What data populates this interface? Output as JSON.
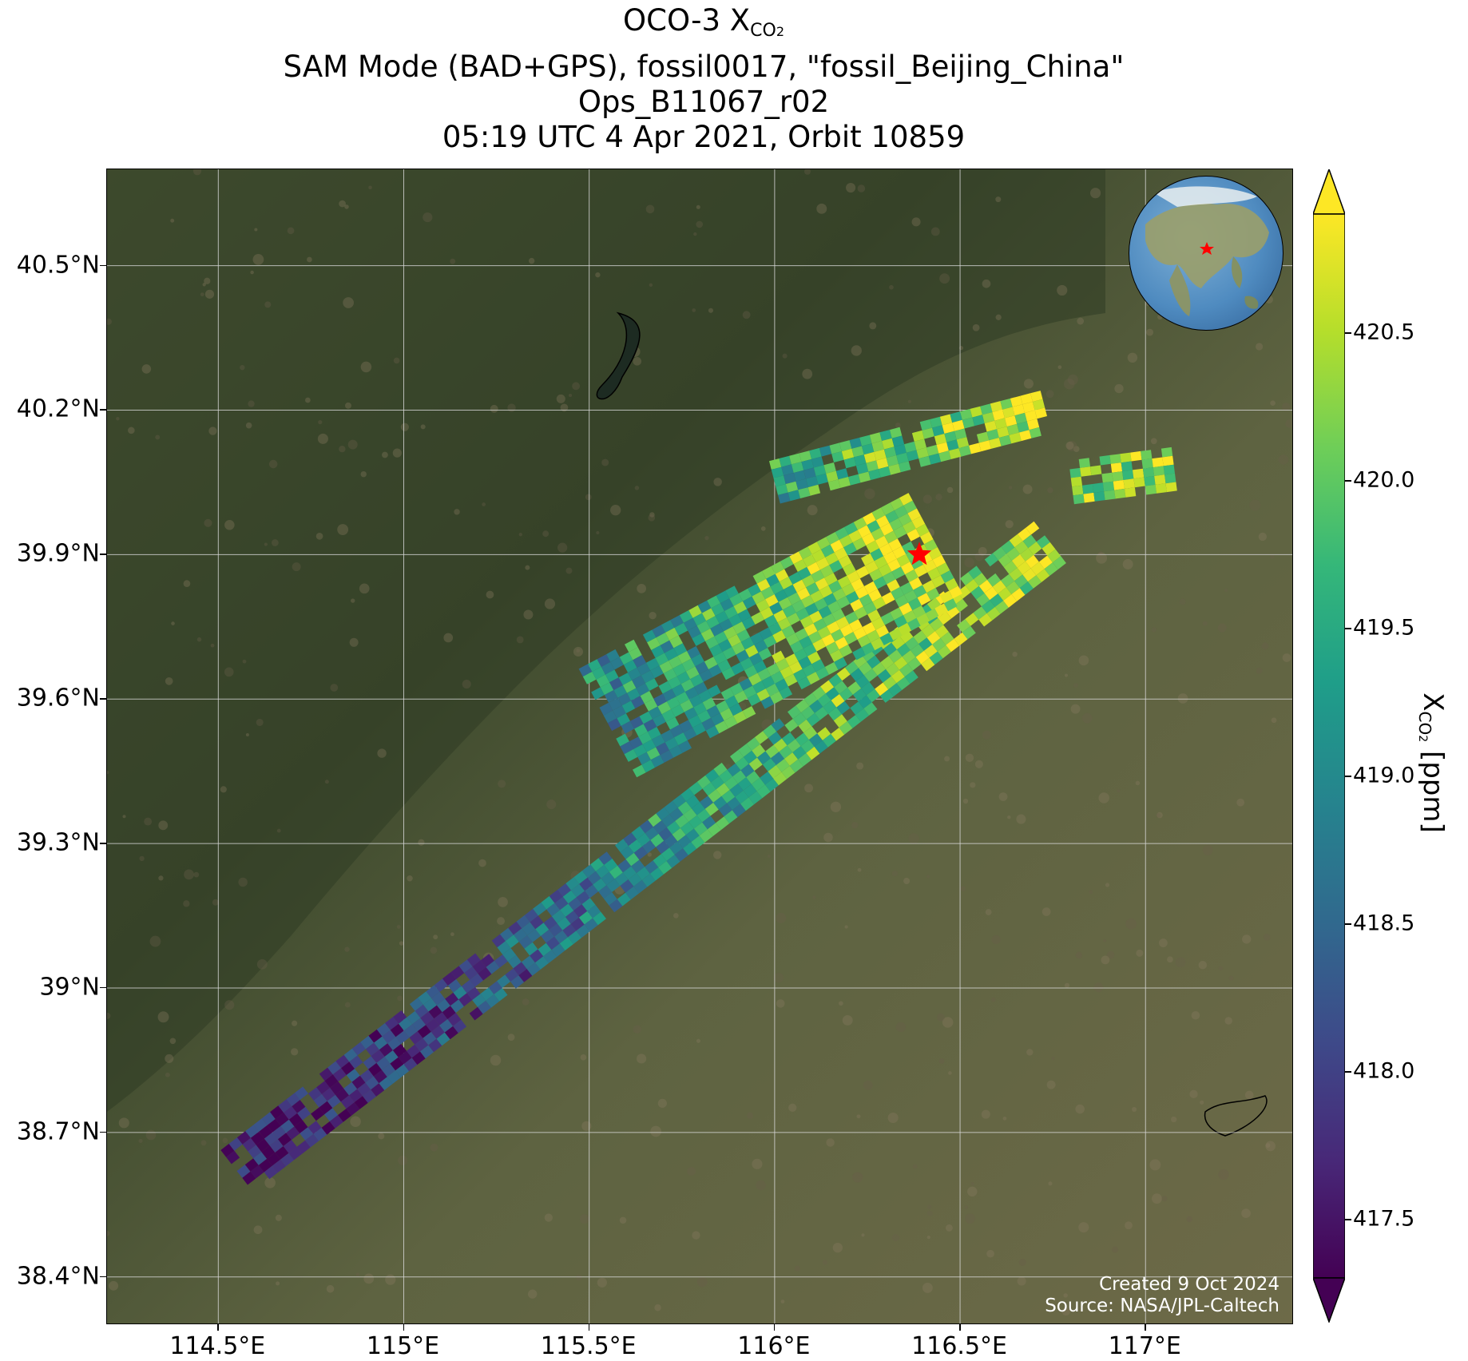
{
  "title": {
    "line1_main": "OCO-3 X",
    "line1_sub": "CO",
    "line1_sub2": "2",
    "line2": "SAM Mode (BAD+GPS), fossil0017, \"fossil_Beijing_China\"",
    "line3": "Ops_B11067_r02",
    "line4": "05:19 UTC 4 Apr 2021, Orbit 10859"
  },
  "map": {
    "lon_range": [
      114.2,
      117.4
    ],
    "lat_range": [
      38.3,
      40.7
    ],
    "lat_ticks": [
      {
        "value": 40.5,
        "label": "40.5°N"
      },
      {
        "value": 40.2,
        "label": "40.2°N"
      },
      {
        "value": 39.9,
        "label": "39.9°N"
      },
      {
        "value": 39.6,
        "label": "39.6°N"
      },
      {
        "value": 39.3,
        "label": "39.3°N"
      },
      {
        "value": 39.0,
        "label": "39°N"
      },
      {
        "value": 38.7,
        "label": "38.7°N"
      },
      {
        "value": 38.4,
        "label": "38.4°N"
      }
    ],
    "lon_ticks": [
      {
        "value": 114.5,
        "label": "114.5°E"
      },
      {
        "value": 115.0,
        "label": "115°E"
      },
      {
        "value": 115.5,
        "label": "115.5°E"
      },
      {
        "value": 116.0,
        "label": "116°E"
      },
      {
        "value": 116.5,
        "label": "116.5°E"
      },
      {
        "value": 117.0,
        "label": "117°E"
      }
    ],
    "target": {
      "lon": 116.39,
      "lat": 39.9,
      "marker": "red-star"
    },
    "basemap": "satellite imagery",
    "colors": {
      "grid": "#d8d8d8",
      "target": "#ff0000"
    }
  },
  "credits": {
    "created": "Created 9 Oct 2024",
    "source": "Source: NASA/JPL-Caltech"
  },
  "colorbar": {
    "label_main": "X",
    "label_sub": "CO",
    "label_sub2": "2",
    "label_unit": " [ppm]",
    "range": [
      417.3,
      420.9
    ],
    "extend": "both",
    "colormap": "viridis",
    "ticks": [
      {
        "value": 420.5,
        "label": "420.5"
      },
      {
        "value": 420.0,
        "label": "420.0"
      },
      {
        "value": 419.5,
        "label": "419.5"
      },
      {
        "value": 419.0,
        "label": "419.0"
      },
      {
        "value": 418.5,
        "label": "418.5"
      },
      {
        "value": 418.0,
        "label": "418.0"
      },
      {
        "value": 417.5,
        "label": "417.5"
      }
    ]
  },
  "chart_data": {
    "type": "heatmap",
    "description_units": "XCO2 ppm along SAM swaths",
    "swaths": [
      {
        "start": {
          "lon": 114.55,
          "lat": 38.62
        },
        "end": {
          "lon": 116.75,
          "lat": 39.93
        },
        "values_along": [
          417.4,
          417.5,
          417.8,
          417.9,
          418.1,
          418.3,
          418.6,
          418.9,
          419.2,
          419.4,
          419.7,
          419.9,
          420.1,
          420.3,
          420.4,
          420.5
        ]
      },
      {
        "start": {
          "lon": 115.55,
          "lat": 39.55
        },
        "end": {
          "lon": 116.45,
          "lat": 39.92
        },
        "values_along": [
          419.0,
          419.3,
          419.6,
          419.9,
          420.2,
          420.4,
          420.6
        ]
      },
      {
        "start": {
          "lon": 116.0,
          "lat": 40.05
        },
        "end": {
          "lon": 116.75,
          "lat": 40.2
        },
        "values_along": [
          419.4,
          419.8,
          420.1,
          420.3,
          420.5
        ]
      },
      {
        "start": {
          "lon": 116.8,
          "lat": 40.05
        },
        "end": {
          "lon": 117.1,
          "lat": 40.08
        },
        "values_along": [
          420.2,
          420.4,
          420.5
        ]
      }
    ]
  }
}
